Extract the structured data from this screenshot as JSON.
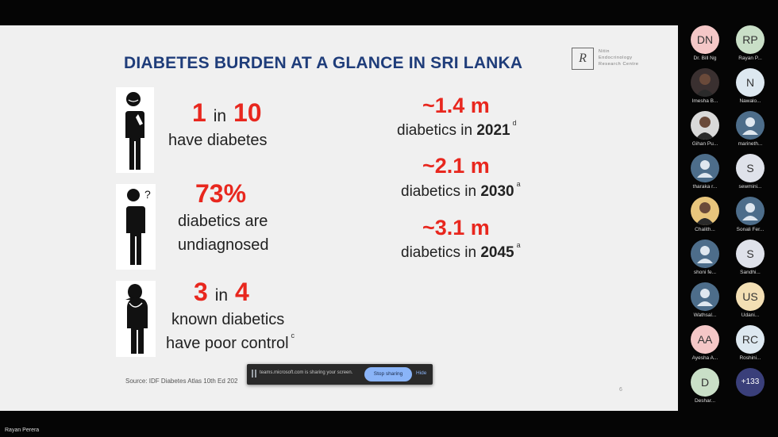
{
  "slide": {
    "title": "DIABETES BURDEN AT A GLANCE IN SRI LANKA",
    "logo": {
      "mark": "R",
      "lines": [
        "Nitin",
        "Endocrinology",
        "Research Centre"
      ]
    },
    "stats": [
      {
        "big_a": "1",
        "mid": "in",
        "big_b": "10",
        "line1": "have diabetes",
        "line2": "",
        "sup": ""
      },
      {
        "big_a": "73%",
        "mid": "",
        "big_b": "",
        "line1": "diabetics are",
        "line2": "undiagnosed",
        "sup": ""
      },
      {
        "big_a": "3",
        "mid": "in",
        "big_b": "4",
        "line1": "known diabetics",
        "line2": "have poor control",
        "sup": "c"
      }
    ],
    "projections": [
      {
        "value": "~1.4 m",
        "text": "diabetics in",
        "year": "2021",
        "sup": "d"
      },
      {
        "value": "~2.1 m",
        "text": "diabetics in",
        "year": "2030",
        "sup": "a"
      },
      {
        "value": "~3.1 m",
        "text": "diabetics in",
        "year": "2045",
        "sup": "a"
      }
    ],
    "source": "Source: IDF Diabetes Atlas 10th Ed 202",
    "page_number": "6"
  },
  "share_bar": {
    "text": "teams.microsoft.com is sharing your screen.",
    "stop_label": "Stop sharing",
    "hide_label": "Hide"
  },
  "participants": [
    {
      "initials": "DN",
      "name": "Dr. Bill Ng",
      "bg": "#f4c7c7",
      "photo": false
    },
    {
      "initials": "RP",
      "name": "Rayan P...",
      "bg": "#c9dfc7",
      "photo": false
    },
    {
      "initials": "",
      "name": "Imesha B...",
      "bg": "#3a3030",
      "photo": true
    },
    {
      "initials": "N",
      "name": "Nawalo...",
      "bg": "#dde8f0",
      "photo": false
    },
    {
      "initials": "",
      "name": "Gihan Pu...",
      "bg": "#d9d9d9",
      "photo": true
    },
    {
      "initials": "",
      "name": "marineth...",
      "bg": "#4d6d8a",
      "photo": false
    },
    {
      "initials": "",
      "name": "tharaka r...",
      "bg": "#4d6d8a",
      "photo": false
    },
    {
      "initials": "S",
      "name": "sewmini...",
      "bg": "#dfe2ea",
      "photo": false
    },
    {
      "initials": "",
      "name": "Chalith...",
      "bg": "#e8c57c",
      "photo": true
    },
    {
      "initials": "",
      "name": "Sonali Fer...",
      "bg": "#4d6d8a",
      "photo": false
    },
    {
      "initials": "",
      "name": "shoni fe...",
      "bg": "#4d6d8a",
      "photo": false
    },
    {
      "initials": "S",
      "name": "Sandhi...",
      "bg": "#dfe2ea",
      "photo": false
    },
    {
      "initials": "",
      "name": "Wathsal...",
      "bg": "#4d6d8a",
      "photo": false
    },
    {
      "initials": "US",
      "name": "Udani...",
      "bg": "#f3dfb4",
      "photo": false
    },
    {
      "initials": "AA",
      "name": "Ayesha A...",
      "bg": "#f4c7c7",
      "photo": false
    },
    {
      "initials": "RC",
      "name": "Roshini...",
      "bg": "#dde8f0",
      "photo": false
    },
    {
      "initials": "D",
      "name": "Deshar...",
      "bg": "#c9dfc7",
      "photo": false
    },
    {
      "initials": "+133",
      "name": "",
      "bg": "#3a3f7a",
      "photo": false
    }
  ],
  "presenter": "Rayan Perera"
}
